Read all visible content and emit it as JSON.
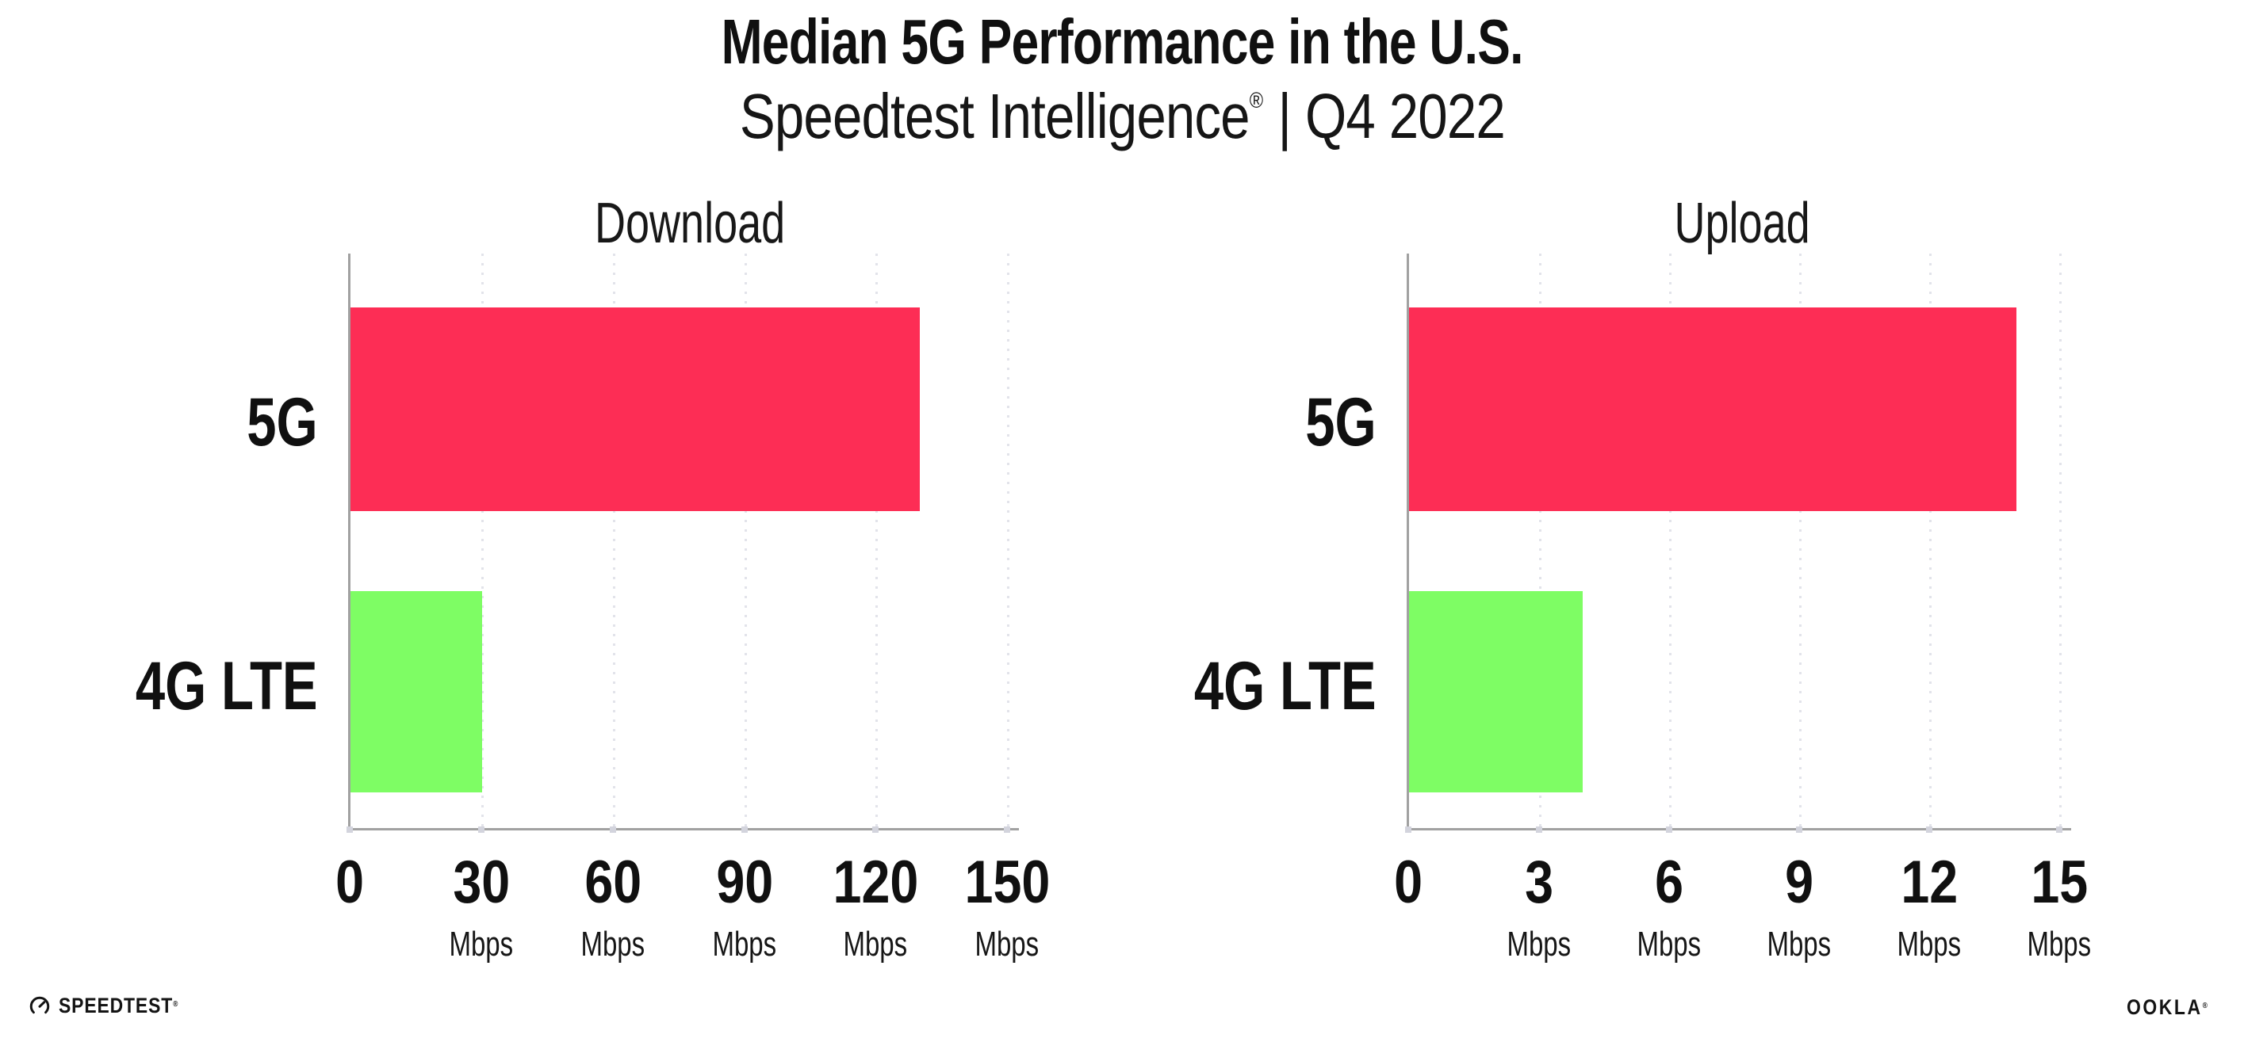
{
  "header": {
    "title": "Median 5G Performance in the U.S.",
    "subtitle_brand": "Speedtest Intelligence",
    "subtitle_reg": "®",
    "subtitle_rest": "| Q4 2022"
  },
  "chart_data": [
    {
      "type": "bar",
      "orientation": "horizontal",
      "title": "Download",
      "categories": [
        "5G",
        "4G LTE"
      ],
      "values": [
        130,
        30
      ],
      "unit": "Mbps",
      "xlim": [
        0,
        150
      ],
      "xticks": [
        0,
        30,
        60,
        90,
        120,
        150
      ],
      "colors": [
        "#FD2D55",
        "#7EFD64"
      ],
      "grid": "vertical-dotted",
      "legend": "none"
    },
    {
      "type": "bar",
      "orientation": "horizontal",
      "title": "Upload",
      "categories": [
        "5G",
        "4G LTE"
      ],
      "values": [
        14,
        4
      ],
      "unit": "Mbps",
      "xlim": [
        0,
        15
      ],
      "xticks": [
        0,
        3,
        6,
        9,
        12,
        15
      ],
      "colors": [
        "#FD2D55",
        "#7EFD64"
      ],
      "grid": "vertical-dotted",
      "legend": "none"
    }
  ],
  "footer": {
    "speedtest_icon": "speedtest-gauge-icon",
    "speedtest_label": "SPEEDTEST",
    "speedtest_mark": "®",
    "ookla_label": "OOKLA",
    "ookla_mark": "®"
  }
}
